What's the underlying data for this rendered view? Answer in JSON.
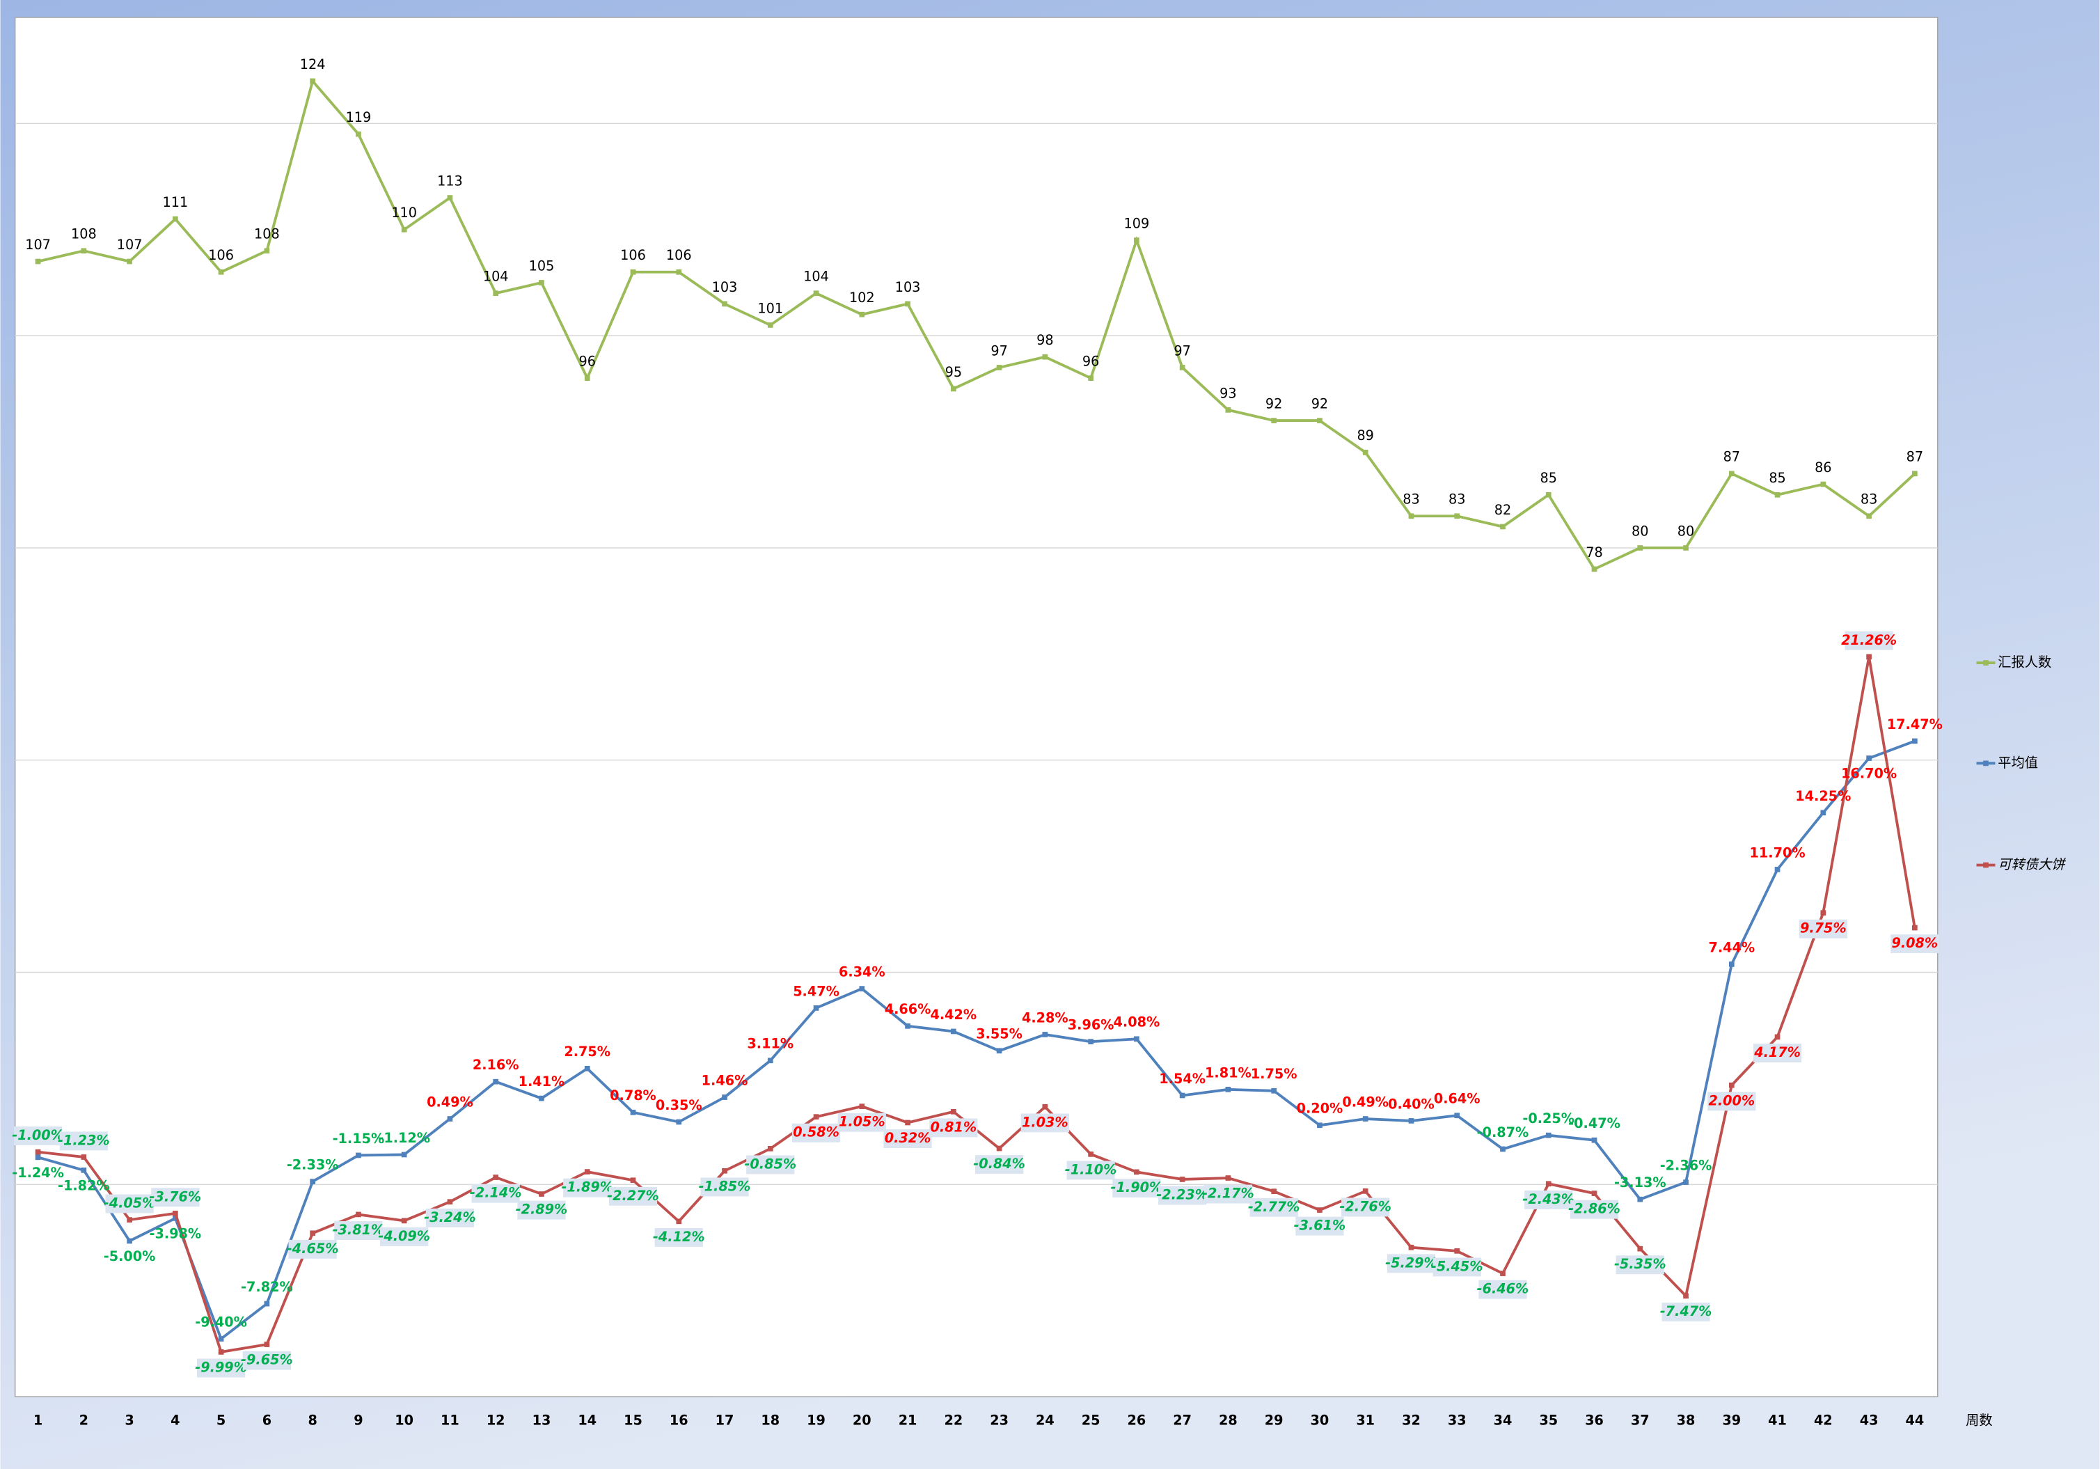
{
  "chart_data": {
    "type": "line",
    "categories": [
      "1",
      "2",
      "3",
      "4",
      "5",
      "6",
      "8",
      "9",
      "10",
      "11",
      "12",
      "13",
      "14",
      "15",
      "16",
      "17",
      "18",
      "19",
      "20",
      "21",
      "22",
      "23",
      "24",
      "25",
      "26",
      "27",
      "28",
      "29",
      "30",
      "31",
      "32",
      "33",
      "34",
      "35",
      "36",
      "37",
      "38",
      "39",
      "41",
      "42",
      "43",
      "44"
    ],
    "x_label": "周数",
    "ylim": [
      0,
      130
    ],
    "ygrid": [
      20,
      40,
      60,
      80,
      100,
      120
    ],
    "y2lim": [
      -12,
      50
    ],
    "legend": "right",
    "series": [
      {
        "name": "汇报人数",
        "color": "#9bbb59",
        "values": [
          107,
          108,
          107,
          111,
          106,
          108,
          124,
          119,
          110,
          113,
          104,
          105,
          96,
          106,
          106,
          103,
          101,
          104,
          102,
          103,
          95,
          97,
          98,
          96,
          109,
          97,
          93,
          92,
          92,
          89,
          83,
          83,
          82,
          85,
          78,
          80,
          80,
          87,
          85,
          86,
          83,
          87
        ]
      },
      {
        "name": "平均值",
        "color": "#4f81bd",
        "axis": "y2",
        "values": [
          -1.24,
          -1.82,
          -5.0,
          -3.98,
          -9.4,
          -7.82,
          -2.33,
          -1.15,
          -1.12,
          0.49,
          2.16,
          1.41,
          2.75,
          0.78,
          0.35,
          1.46,
          3.11,
          5.47,
          6.34,
          4.66,
          4.42,
          3.55,
          4.28,
          3.96,
          4.08,
          1.54,
          1.81,
          1.75,
          0.2,
          0.49,
          0.4,
          0.64,
          -0.87,
          -0.25,
          -0.47,
          -3.13,
          -2.36,
          7.44,
          11.7,
          14.25,
          16.7,
          17.47
        ],
        "value_labels": [
          "-1.24%",
          "-1.82%",
          "-5.00%",
          "-3.98%",
          "-9.40%",
          "-7.82%",
          "-2.33%",
          "-1.15%",
          "-1.12%",
          "0.49%",
          "2.16%",
          "1.41%",
          "2.75%",
          "0.78%",
          "0.35%",
          "1.46%",
          "3.11%",
          "5.47%",
          "6.34%",
          "4.66%",
          "4.42%",
          "3.55%",
          "4.28%",
          "3.96%",
          "4.08%",
          "1.54%",
          "1.81%",
          "1.75%",
          "0.20%",
          "0.49%",
          "0.40%",
          "0.64%",
          "-0.87%",
          "-0.25%",
          "-0.47%",
          "-3.13%",
          "-2.36%",
          "7.44%",
          "11.70%",
          "14.25%",
          "16.70%",
          "17.47%"
        ]
      },
      {
        "name": "可转债大饼",
        "color": "#c0504d",
        "axis": "y2",
        "values": [
          -1.0,
          -1.23,
          -4.05,
          -3.76,
          -9.99,
          -9.65,
          -4.65,
          -3.81,
          -4.09,
          -3.24,
          -2.14,
          -2.89,
          -1.89,
          -2.27,
          -4.12,
          -1.85,
          -0.85,
          0.58,
          1.05,
          0.32,
          0.81,
          -0.84,
          1.03,
          -1.1,
          -1.9,
          -2.23,
          -2.17,
          -2.77,
          -3.61,
          -2.76,
          -5.29,
          -5.45,
          -6.46,
          -2.43,
          -2.86,
          -5.35,
          -7.47,
          2.0,
          4.17,
          9.75,
          21.26,
          9.08
        ],
        "value_labels": [
          "-1.00%",
          "-1.23%",
          "-4.05%",
          "-3.76%",
          "-9.99%",
          "-9.65%",
          "-4.65%",
          "-3.81%",
          "-4.09%",
          "-3.24%",
          "-2.14%",
          "-2.89%",
          "-1.89%",
          "-2.27%",
          "-4.12%",
          "-1.85%",
          "-0.85%",
          "0.58%",
          "1.05%",
          "0.32%",
          "0.81%",
          "-0.84%",
          "1.03%",
          "-1.10%",
          "-1.90%",
          "-2.23%",
          "-2.17%",
          "-2.77%",
          "-3.61%",
          "-2.76%",
          "-5.29%",
          "-5.45%",
          "-6.46%",
          "-2.43%",
          "-2.86%",
          "-5.35%",
          "-7.47%",
          "2.00%",
          "4.17%",
          "9.75%",
          "21.26%",
          "9.08%"
        ]
      }
    ]
  }
}
